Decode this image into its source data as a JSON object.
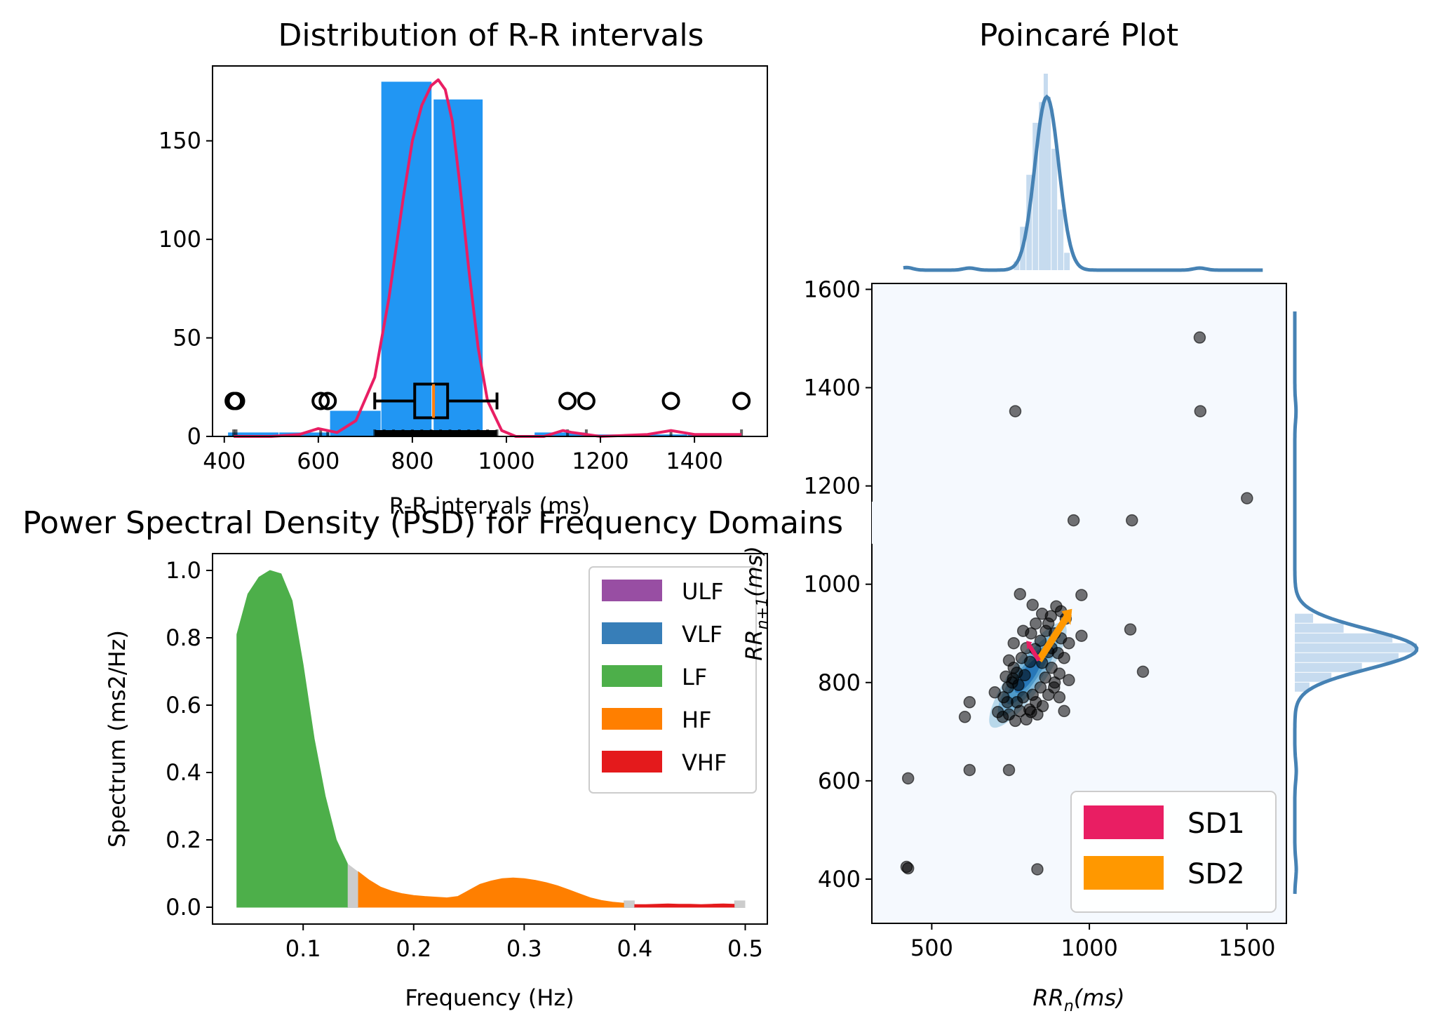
{
  "chart_data": [
    {
      "id": "rr_distribution",
      "type": "bar",
      "title": "Distribution of R-R intervals",
      "xlabel": "R-R intervals (ms)",
      "ylabel": "",
      "xlim": [
        375,
        1555
      ],
      "ylim": [
        0,
        188
      ],
      "xticks": [
        400,
        600,
        800,
        1000,
        1200,
        1400
      ],
      "yticks": [
        0,
        50,
        100,
        150
      ],
      "bar_color": "#2196F3",
      "kde_color": "#E91E63",
      "bins": [
        {
          "x0": 408,
          "x1": 517,
          "count": 2
        },
        {
          "x0": 517,
          "x1": 625,
          "count": 2
        },
        {
          "x0": 625,
          "x1": 734,
          "count": 13
        },
        {
          "x0": 734,
          "x1": 843,
          "count": 180
        },
        {
          "x0": 843,
          "x1": 951,
          "count": 171
        },
        {
          "x0": 951,
          "x1": 1060,
          "count": 0
        },
        {
          "x0": 1060,
          "x1": 1168,
          "count": 2
        },
        {
          "x0": 1168,
          "x1": 1277,
          "count": 1
        },
        {
          "x0": 1277,
          "x1": 1386,
          "count": 1
        },
        {
          "x0": 1386,
          "x1": 1494,
          "count": 1
        }
      ],
      "kde": {
        "x": [
          420,
          500,
          560,
          600,
          640,
          680,
          720,
          750,
          780,
          800,
          820,
          840,
          855,
          870,
          885,
          900,
          920,
          940,
          960,
          990,
          1020,
          1080,
          1120,
          1140,
          1200,
          1300,
          1350,
          1400,
          1500
        ],
        "y": [
          0,
          0,
          1,
          4,
          2,
          8,
          30,
          70,
          120,
          150,
          168,
          178,
          181,
          176,
          160,
          130,
          85,
          45,
          18,
          3,
          0,
          0,
          3,
          2,
          0,
          1,
          3,
          1,
          1
        ]
      },
      "boxplot": {
        "y": 18,
        "whisker_low": 720,
        "q1": 805,
        "median": 845,
        "q3": 875,
        "whisker_high": 980,
        "outliers": [
          420,
          425,
          605,
          620,
          1130,
          1170,
          1350,
          1500
        ]
      },
      "rug": [
        420,
        425,
        605,
        620,
        720,
        740,
        760,
        780,
        800,
        820,
        840,
        860,
        880,
        900,
        920,
        940,
        960,
        980,
        1130,
        1170,
        1350,
        1500
      ]
    },
    {
      "id": "psd",
      "type": "area",
      "title": "Power Spectral Density (PSD) for Frequency Domains",
      "xlabel": "Frequency (Hz)",
      "ylabel": "Spectrum (ms2/Hz)",
      "xlim": [
        0.018,
        0.52
      ],
      "ylim": [
        -0.05,
        1.05
      ],
      "xticks": [
        0.1,
        0.2,
        0.3,
        0.4,
        0.5
      ],
      "yticks": [
        0.0,
        0.2,
        0.4,
        0.6,
        0.8,
        1.0
      ],
      "series": [
        {
          "name": "ULF",
          "color": "#984EA3",
          "x": [],
          "y": []
        },
        {
          "name": "VLF",
          "color": "#377EB8",
          "x": [],
          "y": []
        },
        {
          "name": "LF",
          "color": "#4DAF4A",
          "x": [
            0.04,
            0.05,
            0.06,
            0.07,
            0.08,
            0.09,
            0.1,
            0.11,
            0.12,
            0.13,
            0.14
          ],
          "y": [
            0.81,
            0.93,
            0.98,
            1.0,
            0.99,
            0.91,
            0.72,
            0.5,
            0.33,
            0.2,
            0.13
          ]
        },
        {
          "name": "HF",
          "color": "#FF7F00",
          "x": [
            0.15,
            0.16,
            0.17,
            0.18,
            0.19,
            0.2,
            0.21,
            0.22,
            0.23,
            0.24,
            0.25,
            0.26,
            0.27,
            0.28,
            0.29,
            0.3,
            0.31,
            0.32,
            0.33,
            0.34,
            0.35,
            0.36,
            0.37,
            0.38,
            0.39
          ],
          "y": [
            0.105,
            0.08,
            0.06,
            0.048,
            0.04,
            0.035,
            0.032,
            0.03,
            0.028,
            0.032,
            0.05,
            0.068,
            0.078,
            0.085,
            0.087,
            0.085,
            0.08,
            0.073,
            0.064,
            0.052,
            0.04,
            0.028,
            0.02,
            0.015,
            0.012
          ]
        },
        {
          "name": "VHF",
          "color": "#E41A1C",
          "x": [
            0.4,
            0.41,
            0.42,
            0.43,
            0.44,
            0.45,
            0.46,
            0.47,
            0.48,
            0.49
          ],
          "y": [
            0.008,
            0.008,
            0.009,
            0.01,
            0.009,
            0.009,
            0.008,
            0.009,
            0.01,
            0.009
          ]
        }
      ]
    },
    {
      "id": "poincare",
      "type": "scatter",
      "title": "Poincaré Plot",
      "xlabel": "RR_n(ms)",
      "ylabel": "RR_n+1(ms)",
      "xlim": [
        310,
        1625
      ],
      "ylim": [
        310,
        1612
      ],
      "xticks": [
        500,
        1000,
        1500
      ],
      "yticks": [
        400,
        600,
        800,
        1000,
        1200,
        1400,
        1600
      ],
      "background": "#F5F9FE",
      "point_color": "#000000",
      "points": [
        [
          420,
          425
        ],
        [
          425,
          422
        ],
        [
          425,
          605
        ],
        [
          605,
          730
        ],
        [
          620,
          760
        ],
        [
          620,
          622
        ],
        [
          745,
          622
        ],
        [
          765,
          1352
        ],
        [
          835,
          420
        ],
        [
          1135,
          1130
        ],
        [
          1170,
          822
        ],
        [
          1350,
          1502
        ],
        [
          1352,
          1352
        ],
        [
          1500,
          1175
        ],
        [
          1130,
          908
        ],
        [
          950,
          1130
        ],
        [
          780,
          980
        ],
        [
          820,
          958
        ],
        [
          975,
          978
        ],
        [
          975,
          895
        ],
        [
          920,
          742
        ],
        [
          815,
          740
        ],
        [
          820,
          775
        ],
        [
          700,
          780
        ],
        [
          710,
          740
        ],
        [
          725,
          730
        ],
        [
          740,
          760
        ],
        [
          755,
          800
        ],
        [
          770,
          820
        ],
        [
          785,
          850
        ],
        [
          800,
          870
        ],
        [
          815,
          900
        ],
        [
          830,
          920
        ],
        [
          850,
          940
        ],
        [
          870,
          920
        ],
        [
          890,
          900
        ],
        [
          900,
          860
        ],
        [
          880,
          830
        ],
        [
          860,
          810
        ],
        [
          845,
          790
        ],
        [
          830,
          760
        ],
        [
          810,
          745
        ],
        [
          790,
          770
        ],
        [
          775,
          795
        ],
        [
          760,
          830
        ],
        [
          745,
          845
        ],
        [
          735,
          812
        ],
        [
          728,
          770
        ],
        [
          742,
          790
        ],
        [
          758,
          808
        ],
        [
          770,
          760
        ],
        [
          795,
          815
        ],
        [
          812,
          842
        ],
        [
          828,
          868
        ],
        [
          845,
          885
        ],
        [
          862,
          905
        ],
        [
          878,
          935
        ],
        [
          895,
          955
        ],
        [
          910,
          945
        ],
        [
          925,
          930
        ],
        [
          935,
          880
        ],
        [
          920,
          850
        ],
        [
          905,
          818
        ],
        [
          888,
          790
        ],
        [
          870,
          775
        ],
        [
          852,
          752
        ],
        [
          835,
          735
        ],
        [
          800,
          725
        ],
        [
          780,
          742
        ],
        [
          765,
          722
        ],
        [
          745,
          735
        ],
        [
          760,
          880
        ],
        [
          790,
          905
        ],
        [
          935,
          805
        ],
        [
          905,
          770
        ],
        [
          870,
          862
        ],
        [
          890,
          800
        ],
        [
          850,
          840
        ],
        [
          880,
          870
        ],
        [
          910,
          890
        ]
      ],
      "marginal_color": "#4682B4",
      "marginal_fill": "#C6DBEF",
      "legend": [
        {
          "name": "SD1",
          "color": "#E91E63"
        },
        {
          "name": "SD2",
          "color": "#FF9800"
        }
      ]
    }
  ]
}
